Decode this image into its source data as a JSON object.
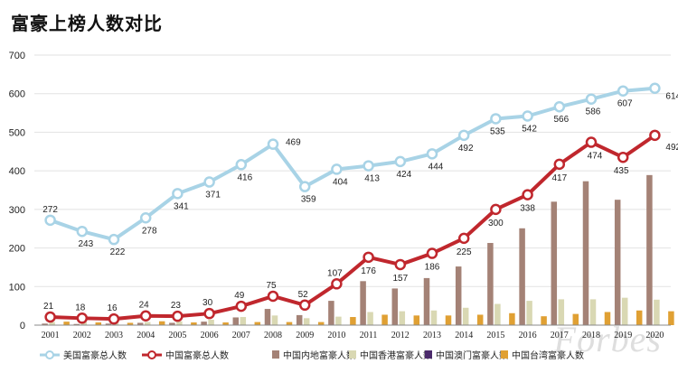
{
  "title": "富豪上榜人数对比",
  "watermark": "Forbes",
  "chart_data": {
    "type": "line",
    "categories": [
      "2001",
      "2002",
      "2003",
      "2004",
      "2005",
      "2006",
      "2007",
      "2008",
      "2009",
      "2010",
      "2011",
      "2012",
      "2013",
      "2014",
      "2015",
      "2016",
      "2017",
      "2018",
      "2019",
      "2020"
    ],
    "ylim": [
      0,
      700
    ],
    "yticks": [
      0,
      100,
      200,
      300,
      400,
      500,
      600,
      700
    ],
    "grid": true,
    "legend_position": "bottom",
    "series": [
      {
        "name": "美国富豪总人数",
        "kind": "line",
        "color": "#a8d3e6",
        "values": [
          272,
          243,
          222,
          278,
          341,
          371,
          416,
          469,
          359,
          404,
          413,
          424,
          444,
          492,
          535,
          542,
          566,
          586,
          607,
          614
        ]
      },
      {
        "name": "中国富豪总人数",
        "kind": "line",
        "color": "#c0272d",
        "values": [
          21,
          18,
          16,
          24,
          23,
          30,
          49,
          75,
          52,
          107,
          176,
          157,
          186,
          225,
          300,
          338,
          417,
          474,
          435,
          492
        ]
      },
      {
        "name": "中国内地富豪人数",
        "kind": "bar",
        "color": "#a48276",
        "values": [
          4,
          3,
          4,
          6,
          6,
          9,
          20,
          42,
          26,
          63,
          114,
          95,
          122,
          152,
          213,
          251,
          320,
          373,
          325,
          389
        ]
      },
      {
        "name": "中国香港富豪人数",
        "kind": "bar",
        "color": "#d9d8b3",
        "values": [
          8,
          8,
          6,
          8,
          10,
          14,
          21,
          25,
          18,
          22,
          34,
          36,
          38,
          45,
          55,
          63,
          67,
          67,
          71,
          66
        ]
      },
      {
        "name": "中国澳门富豪人数",
        "kind": "bar",
        "color": "#4b2a6b",
        "values": [
          0,
          0,
          0,
          0,
          0,
          0,
          0,
          0,
          0,
          1,
          1,
          1,
          1,
          1,
          1,
          1,
          1,
          1,
          1,
          1
        ]
      },
      {
        "name": "中国台湾富豪人数",
        "kind": "bar",
        "color": "#e0a033",
        "values": [
          9,
          7,
          6,
          10,
          7,
          7,
          8,
          8,
          8,
          21,
          27,
          25,
          25,
          27,
          31,
          23,
          29,
          34,
          38,
          36
        ]
      }
    ]
  }
}
